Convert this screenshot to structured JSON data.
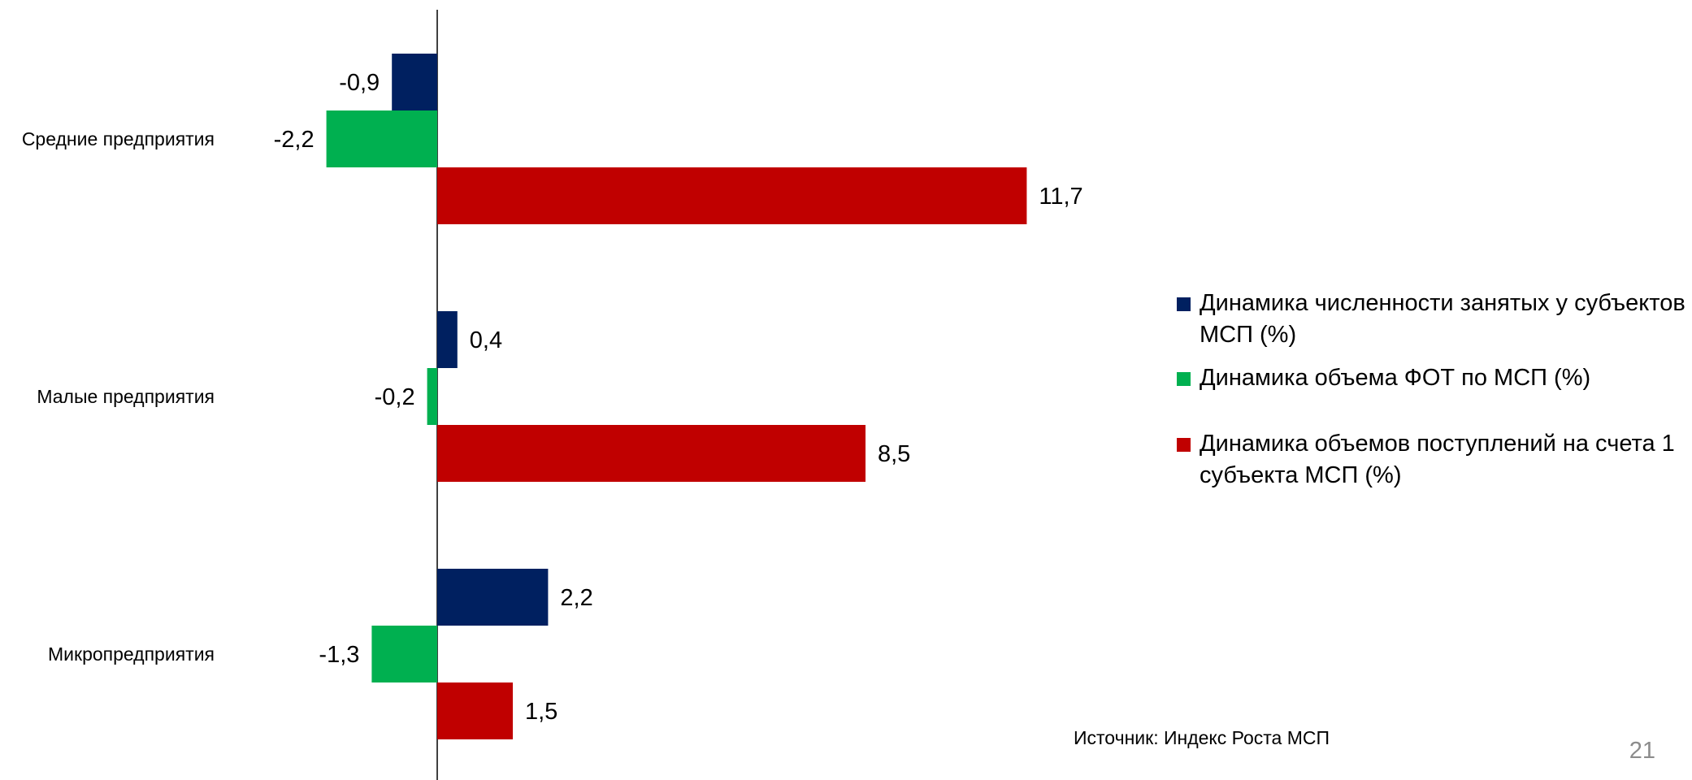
{
  "chart_data": {
    "type": "bar",
    "orientation": "horizontal",
    "categories": [
      "Средние предприятия",
      "Малые предприятия",
      "Микропредприятия"
    ],
    "series": [
      {
        "name": "Динамика численности занятых у субъектов МСП (%)",
        "color": "#002060",
        "values": [
          -0.9,
          0.4,
          2.2
        ],
        "labels": [
          "-0,9",
          "0,4",
          "2,2"
        ]
      },
      {
        "name": "Динамика объема ФОТ по МСП (%)",
        "color": "#00b050",
        "values": [
          -2.2,
          -0.2,
          -1.3
        ],
        "labels": [
          "-2,2",
          "-0,2",
          "-1,3"
        ]
      },
      {
        "name": "Динамика объемов поступлений на счета 1 субъекта МСП (%)",
        "color": "#c00000",
        "values": [
          11.7,
          8.5,
          1.5
        ],
        "labels": [
          "11,7",
          "8,5",
          "1,5"
        ]
      }
    ],
    "legend_position": "right",
    "grid": false,
    "xlabel": "",
    "ylabel": ""
  },
  "source": "Источник: Индекс Роста МСП",
  "page_number": "21"
}
